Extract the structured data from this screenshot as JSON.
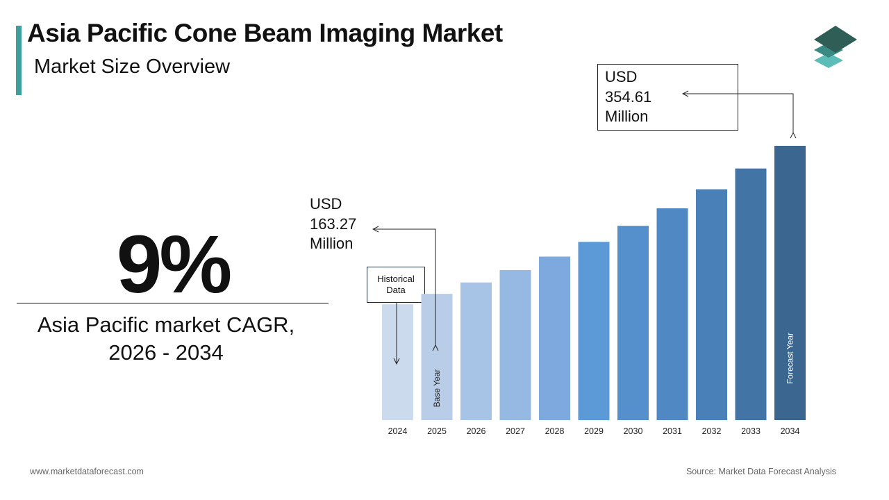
{
  "header": {
    "title": "Asia Pacific Cone Beam Imaging Market",
    "subtitle": "Market Size Overview"
  },
  "cagr": {
    "value": "9%",
    "label_line1": "Asia Pacific  market CAGR,",
    "label_line2": "2026 - 2034"
  },
  "callouts": {
    "start": {
      "line1": "USD",
      "line2": "163.27",
      "line3": "Million"
    },
    "end": {
      "line1": "USD",
      "line2": "354.61",
      "line3": "Million"
    },
    "historical": {
      "line1": "Historical",
      "line2": "Data"
    }
  },
  "chart_data": {
    "type": "bar",
    "title": "",
    "xlabel": "",
    "ylabel": "",
    "unit": "USD Million",
    "categories": [
      "2024",
      "2025",
      "2026",
      "2027",
      "2028",
      "2029",
      "2030",
      "2031",
      "2032",
      "2033",
      "2034"
    ],
    "values": [
      149.8,
      163.27,
      177.97,
      193.98,
      211.44,
      230.47,
      251.21,
      273.82,
      298.46,
      325.32,
      354.61
    ],
    "bar_colors": [
      "#ccdaed",
      "#b9cde8",
      "#a7c3e6",
      "#95b9e2",
      "#7ea9de",
      "#5b9ad6",
      "#5590cc",
      "#4f88c2",
      "#4a80b8",
      "#4374a6",
      "#3a668f"
    ],
    "bar_labels": {
      "2025": "Base Year",
      "2034": "Forecast Year"
    },
    "ylim": [
      0,
      354.61
    ],
    "grid": false,
    "legend": "none"
  },
  "footer": {
    "website": "www.marketdataforecast.com",
    "source": "Source: Market Data Forecast Analysis"
  },
  "brand": {
    "accent": "#3d9e9c",
    "logo_icon": "stacked-layers-icon"
  }
}
